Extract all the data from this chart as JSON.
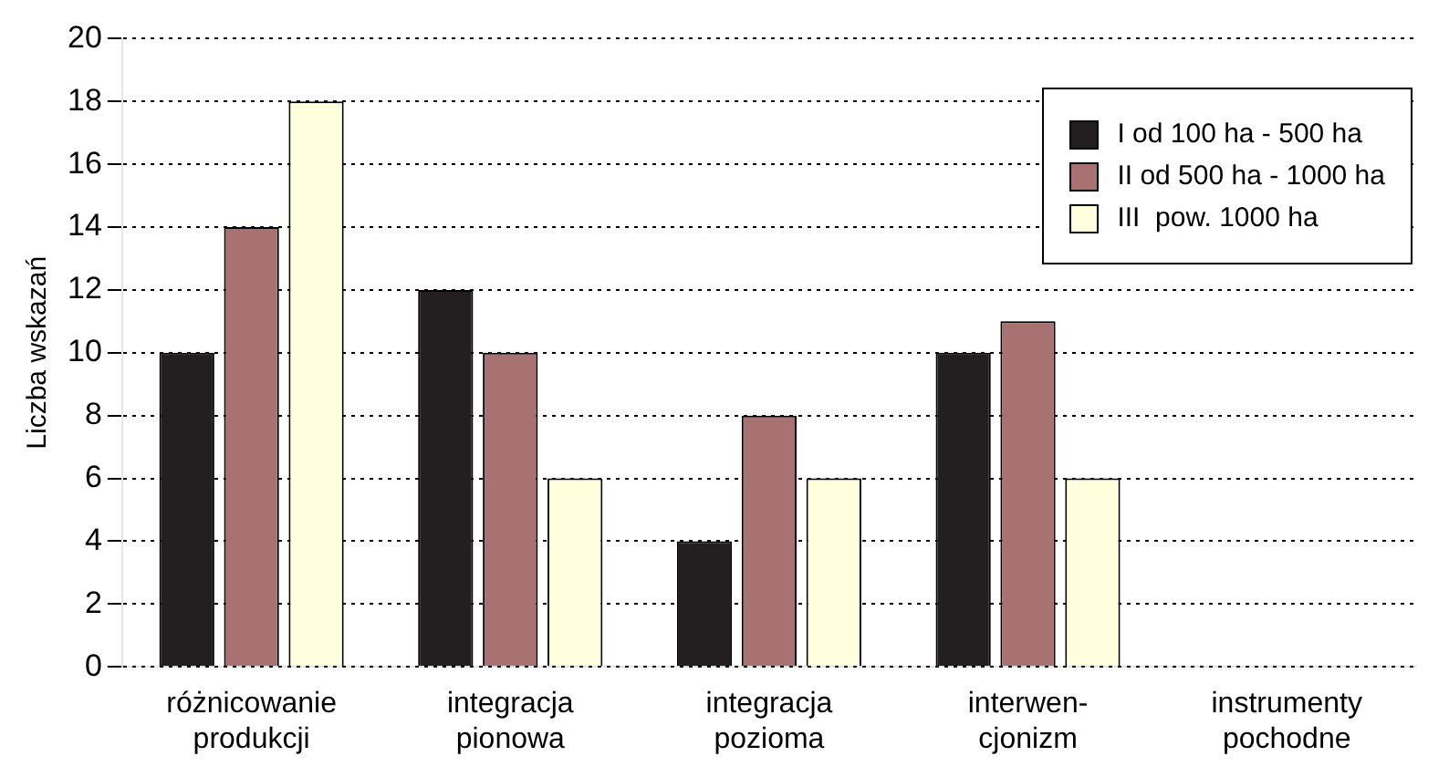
{
  "chart_data": {
    "type": "bar",
    "ylabel": "Liczba wskazań",
    "categories": [
      "różnicowanie produkcji",
      "integracja pionowa",
      "integracja pozioma",
      "interwen- cjonizm",
      "instrumenty pochodne"
    ],
    "series": [
      {
        "name": "I od 100 ha - 500 ha",
        "color": "#231f20",
        "values": [
          10,
          12,
          4,
          10,
          0
        ]
      },
      {
        "name": "II od 500 ha - 1000 ha",
        "color": "#a87272",
        "values": [
          14,
          10,
          8,
          11,
          0
        ]
      },
      {
        "name": "III  pow. 1000 ha",
        "color": "#ffffdd",
        "values": [
          18,
          6,
          6,
          6,
          0
        ]
      }
    ],
    "ylim": [
      0,
      20
    ],
    "yticks": [
      0,
      2,
      4,
      6,
      8,
      10,
      12,
      14,
      16,
      18,
      20
    ],
    "grid": "y",
    "legend": "top right"
  }
}
